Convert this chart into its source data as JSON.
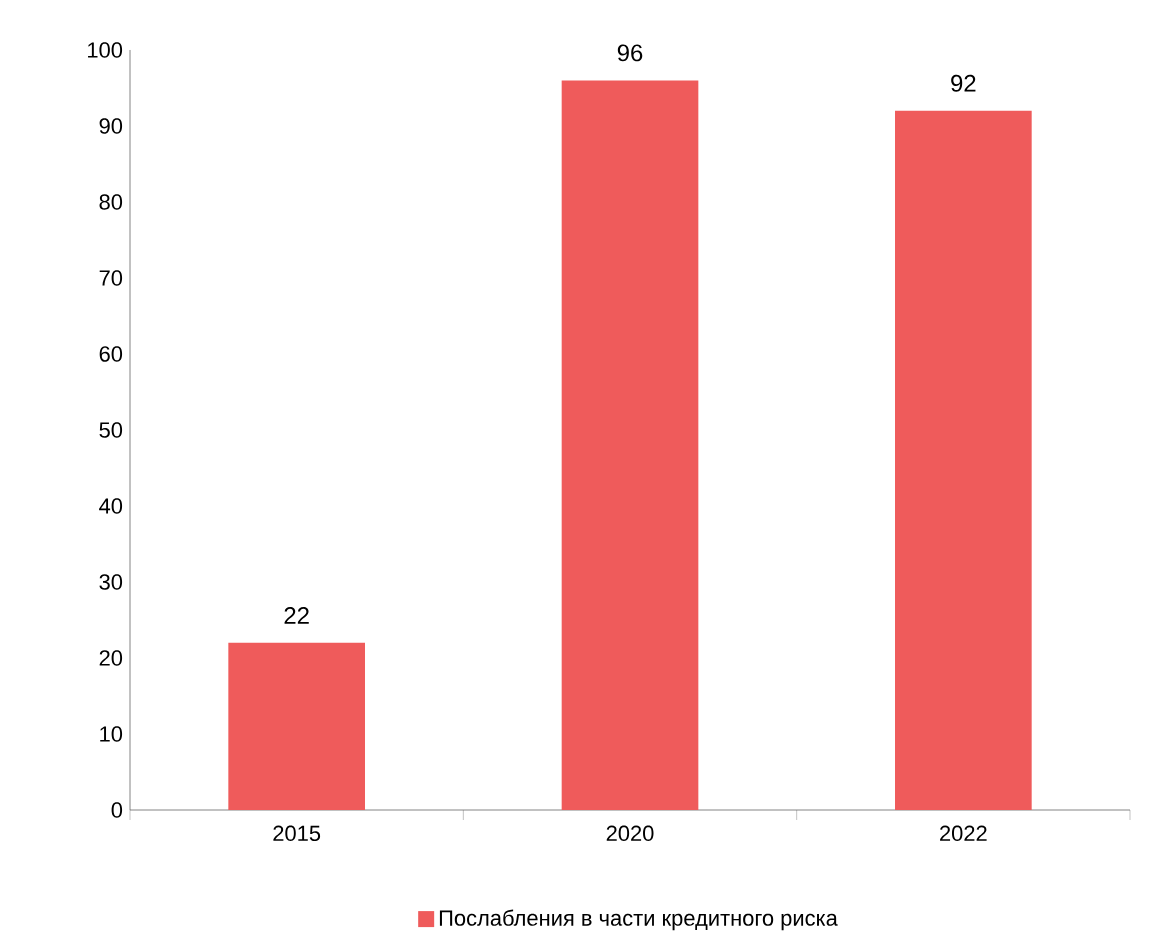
{
  "chart_data": {
    "type": "bar",
    "categories": [
      "2015",
      "2020",
      "2022"
    ],
    "series": [
      {
        "name": "Послабления в части кредитного риска",
        "color": "#ef5b5b",
        "values": [
          22,
          96,
          92
        ]
      }
    ],
    "ylim": [
      0,
      100
    ],
    "yticks": [
      0,
      10,
      20,
      30,
      40,
      50,
      60,
      70,
      80,
      90,
      100
    ],
    "data_labels": true,
    "grid": false,
    "legend": "bottom"
  }
}
